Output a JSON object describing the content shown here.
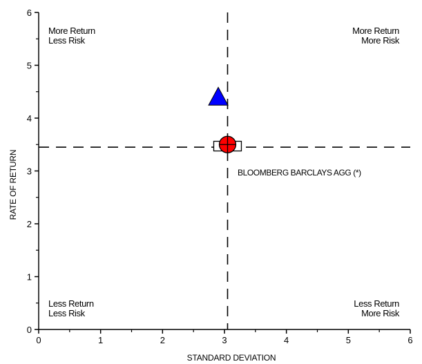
{
  "chart_data": {
    "type": "scatter",
    "xlabel": "STANDARD DEVIATION",
    "ylabel": "RATE OF RETURN",
    "xlim": [
      0,
      6
    ],
    "ylim": [
      0,
      6
    ],
    "xticks": [
      0,
      1,
      2,
      3,
      4,
      5,
      6
    ],
    "yticks": [
      0,
      1,
      2,
      3,
      4,
      5,
      6
    ],
    "reference_lines": {
      "x": 3.05,
      "y": 3.45
    },
    "quadrant_labels": {
      "top_left": [
        "More Return",
        "Less Risk"
      ],
      "top_right": [
        "More Return",
        "More Risk"
      ],
      "bottom_left": [
        "Less Return",
        "Less Risk"
      ],
      "bottom_right": [
        "Less Return",
        "More Risk"
      ]
    },
    "points": [
      {
        "marker": "triangle",
        "color": "#0000ff",
        "x": 2.9,
        "y": 4.4
      },
      {
        "marker": "crossed-circle",
        "color": "#ff0000",
        "x": 3.05,
        "y": 3.5
      },
      {
        "marker": "square",
        "color": "#ffffff",
        "x": 3.05,
        "y": 3.47
      }
    ],
    "annotation": {
      "text": "BLOOMBERG BARCLAYS AGG (*)",
      "x": 3.2,
      "y": 3.3
    },
    "grid": false
  }
}
